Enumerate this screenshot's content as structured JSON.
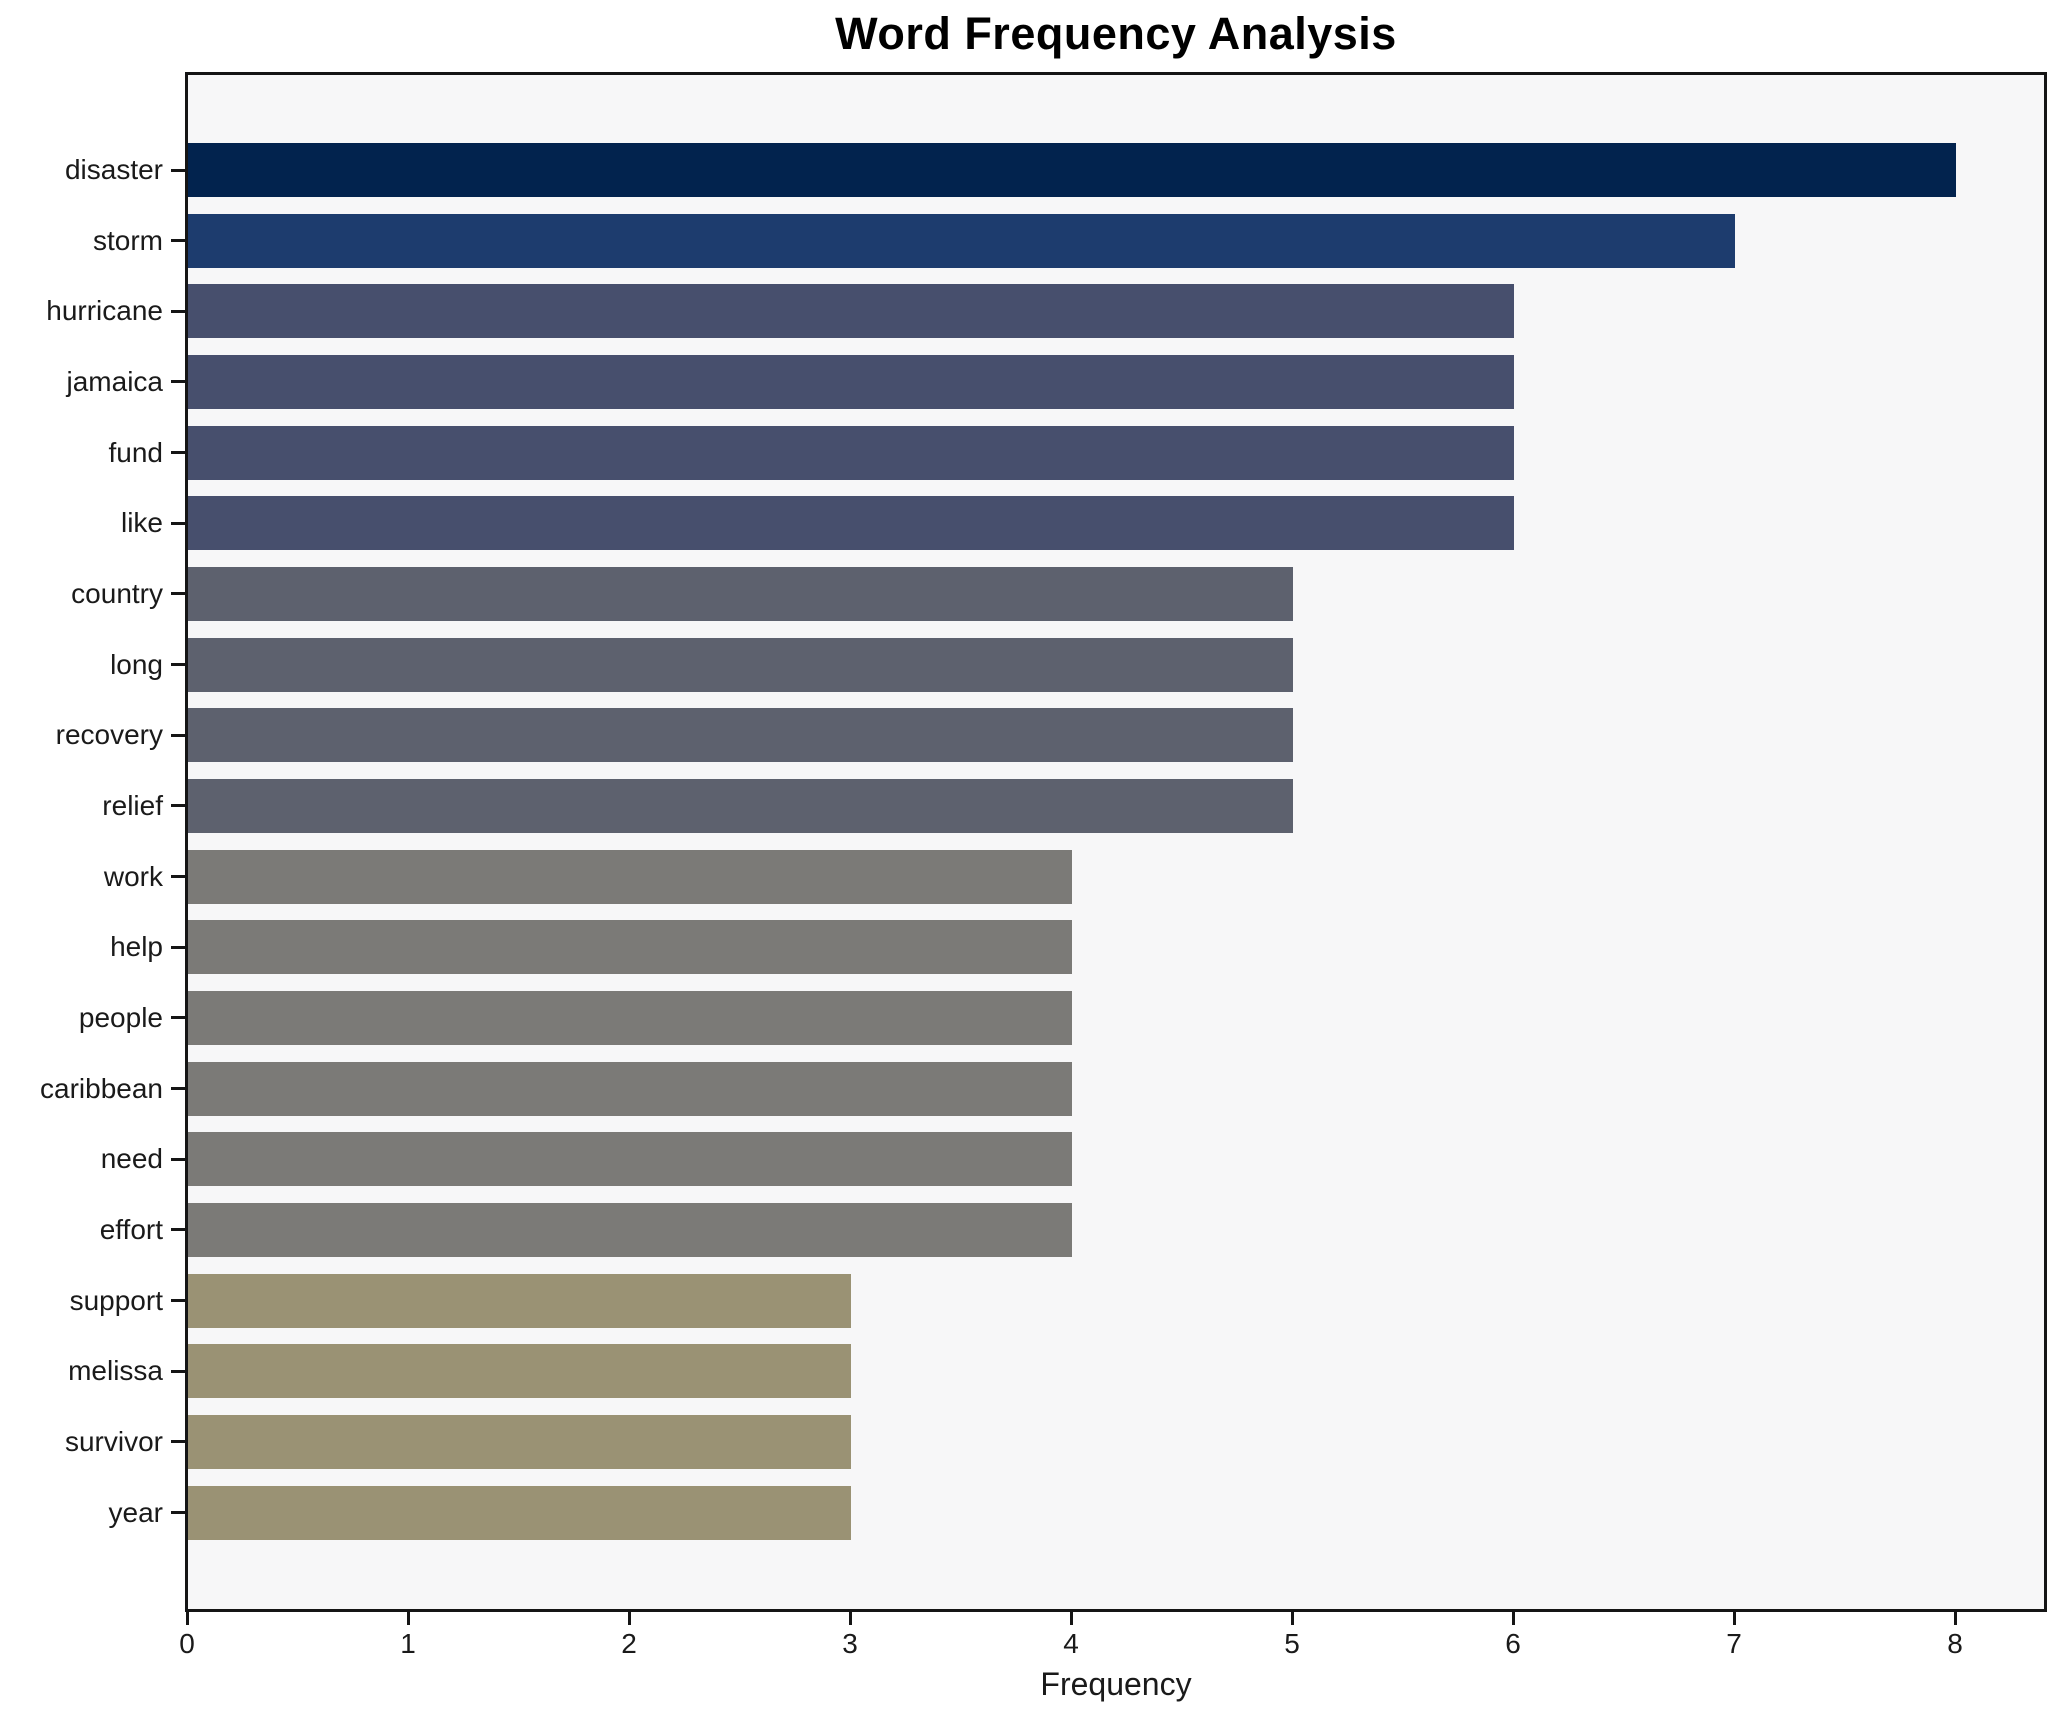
{
  "chart_data": {
    "type": "bar",
    "orientation": "horizontal",
    "title": "Word Frequency Analysis",
    "xlabel": "Frequency",
    "ylabel": "",
    "xlim": [
      0,
      8.4
    ],
    "xticks": [
      0,
      1,
      2,
      3,
      4,
      5,
      6,
      7,
      8
    ],
    "grid": false,
    "legend": "none",
    "plot_background": "#f7f7f8",
    "categories": [
      "disaster",
      "storm",
      "hurricane",
      "jamaica",
      "fund",
      "like",
      "country",
      "long",
      "recovery",
      "relief",
      "work",
      "help",
      "people",
      "caribbean",
      "need",
      "effort",
      "support",
      "melissa",
      "survivor",
      "year"
    ],
    "values": [
      8,
      7,
      6,
      6,
      6,
      6,
      5,
      5,
      5,
      5,
      4,
      4,
      4,
      4,
      4,
      4,
      3,
      3,
      3,
      3
    ],
    "bar_colors_by_value": {
      "8": "#02234e",
      "7": "#1d3c6e",
      "6": "#474f6d",
      "5": "#5d616e",
      "4": "#7b7a77",
      "3": "#9a9274"
    }
  }
}
